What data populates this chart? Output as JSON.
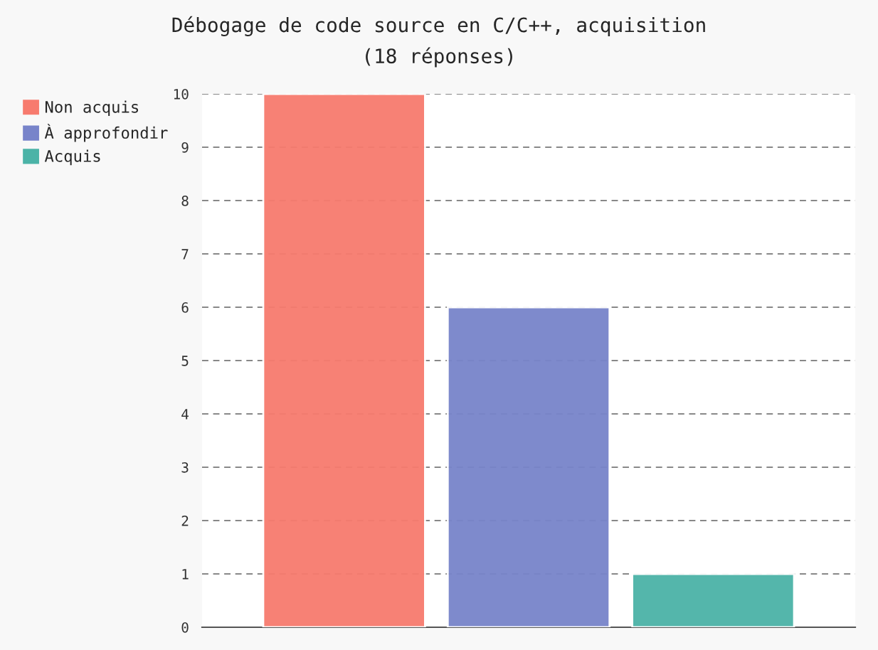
{
  "chart_data": {
    "type": "bar",
    "title": "Débogage de code source en C/C++, acquisition\n(18 réponses)",
    "categories": [
      null,
      null,
      null
    ],
    "series": [
      {
        "name": "Non acquis",
        "color": "#f77b6e",
        "values": [
          10,
          null,
          null
        ]
      },
      {
        "name": "À approfondir",
        "color": "#7884ca",
        "values": [
          null,
          6,
          null
        ]
      },
      {
        "name": "Acquis",
        "color": "#4bb3a7",
        "values": [
          null,
          null,
          1
        ]
      }
    ],
    "ylim": [
      0,
      10
    ],
    "yticks": [
      0,
      1,
      2,
      3,
      4,
      5,
      6,
      7,
      8,
      9,
      10
    ],
    "grid": "y",
    "legend": "top left"
  }
}
